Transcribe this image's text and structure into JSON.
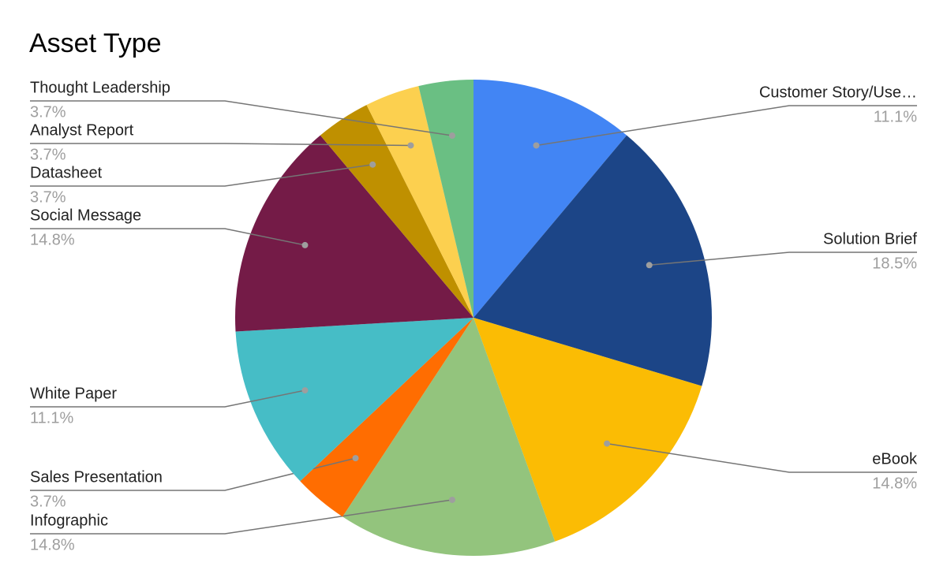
{
  "chart_data": {
    "type": "pie",
    "title": "Asset Type",
    "categories": [
      "Customer Story/Use…",
      "Solution Brief",
      "eBook",
      "Infographic",
      "Sales Presentation",
      "White Paper",
      "Social Message",
      "Datasheet",
      "Analyst Report",
      "Thought Leadership"
    ],
    "values": [
      11.1,
      18.5,
      14.8,
      14.8,
      3.7,
      11.1,
      14.8,
      3.7,
      3.7,
      3.7
    ],
    "value_labels": [
      "11.1%",
      "18.5%",
      "14.8%",
      "14.8%",
      "3.7%",
      "11.1%",
      "14.8%",
      "3.7%",
      "3.7%",
      "3.7%"
    ],
    "colors": [
      "#4285f4",
      "#1c4587",
      "#fbbc04",
      "#93c47d",
      "#ff6d01",
      "#46bdc6",
      "#741b47",
      "#bf9000",
      "#fcd04f",
      "#6abf83"
    ]
  }
}
